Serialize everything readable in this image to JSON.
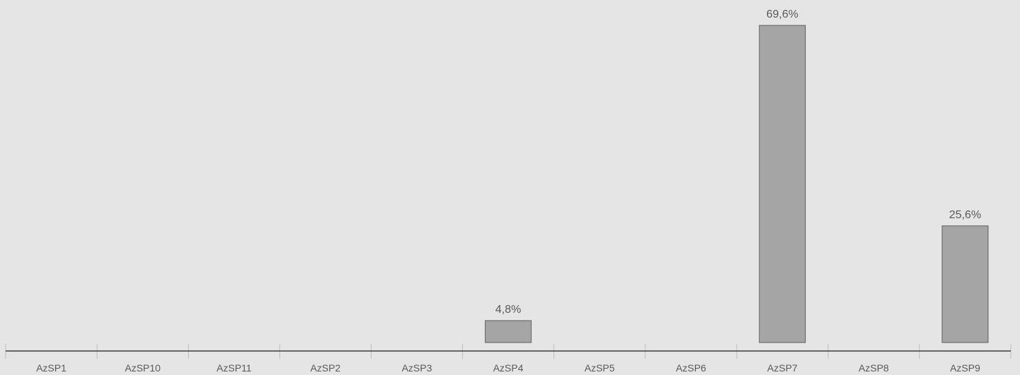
{
  "colors": {
    "background": "#e5e5e5",
    "bar_fill": "#a5a5a5",
    "bar_stroke": "#6e6e6e",
    "axis": "#1a1a1a",
    "tick": "#bdbdbd",
    "text": "#595959"
  },
  "chart_data": {
    "type": "bar",
    "categories": [
      "AzSP1",
      "AzSP10",
      "AzSP11",
      "AzSP2",
      "AzSP3",
      "AzSP4",
      "AzSP5",
      "AzSP6",
      "AzSP7",
      "AzSP8",
      "AzSP9"
    ],
    "values": [
      0,
      0,
      0,
      0,
      0,
      4.8,
      0,
      0,
      69.6,
      0,
      25.6
    ],
    "data_labels": [
      "",
      "",
      "",
      "",
      "",
      "4,8%",
      "",
      "",
      "69,6%",
      "",
      "25,6%"
    ],
    "title": "",
    "xlabel": "",
    "ylabel": "",
    "ylim": [
      0,
      69.6
    ],
    "grid": false,
    "legend": "none"
  }
}
